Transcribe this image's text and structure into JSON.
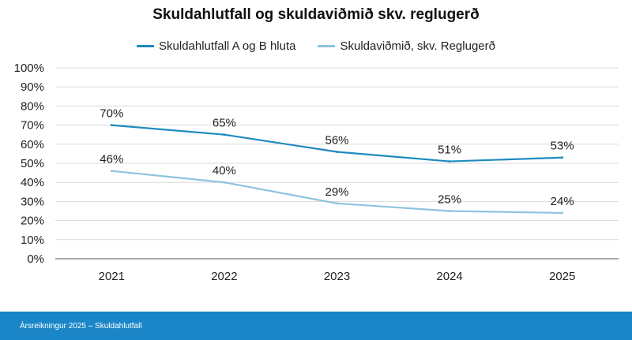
{
  "footer": {
    "text": "Ársreikningur 2025 – Skuldahlutfall"
  },
  "colors": {
    "series1": "#1f8bbf",
    "series2": "#8fc3e0",
    "grid": "#d9d9d9",
    "axis": "#555555",
    "footer_bg": "#1a86c8"
  },
  "chart_data": {
    "type": "line",
    "title": "Skuldahlutfall og skuldaviðmið skv. reglugerð",
    "x": [
      "2021",
      "2022",
      "2023",
      "2024",
      "2025"
    ],
    "series": [
      {
        "name": "Skuldahlutfall A og B hluta",
        "values": [
          70,
          65,
          56,
          51,
          53
        ],
        "labels": [
          "70%",
          "65%",
          "56%",
          "51%",
          "53%"
        ]
      },
      {
        "name": "Skuldaviðmið, skv. Reglugerð",
        "values": [
          46,
          40,
          29,
          25,
          24
        ],
        "labels": [
          "46%",
          "40%",
          "29%",
          "25%",
          "24%"
        ]
      }
    ],
    "y_ticks": [
      "0%",
      "10%",
      "20%",
      "30%",
      "40%",
      "50%",
      "60%",
      "70%",
      "80%",
      "90%",
      "100%"
    ],
    "ylim": [
      0,
      100
    ],
    "grid": true,
    "legend_position": "top"
  }
}
